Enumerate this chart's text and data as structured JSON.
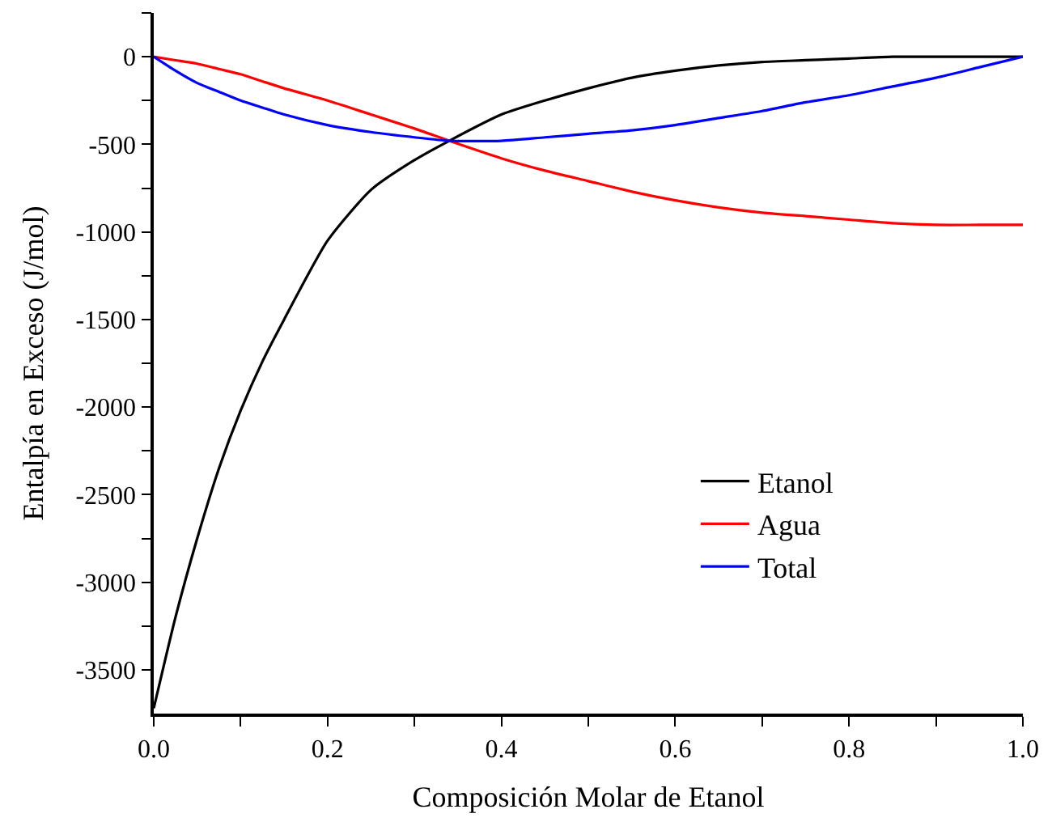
{
  "chart_data": {
    "type": "line",
    "xlabel": "Composición Molar de Etanol",
    "ylabel": "Entalpía en Exceso (J/mol)",
    "x": [
      0,
      0.025,
      0.05,
      0.075,
      0.1,
      0.125,
      0.15,
      0.2,
      0.25,
      0.3,
      0.34,
      0.4,
      0.45,
      0.5,
      0.55,
      0.6,
      0.65,
      0.7,
      0.75,
      0.8,
      0.85,
      0.9,
      0.95,
      1.0
    ],
    "series": [
      {
        "name": "Etanol",
        "color": "#000000",
        "values": [
          -3720,
          -3200,
          -2750,
          -2350,
          -2020,
          -1740,
          -1500,
          -1050,
          -760,
          -590,
          -480,
          -330,
          -250,
          -180,
          -120,
          -80,
          -50,
          -30,
          -20,
          -10,
          0,
          0,
          0,
          0
        ]
      },
      {
        "name": "Agua",
        "color": "#ff0000",
        "values": [
          0,
          -20,
          -40,
          -70,
          -100,
          -140,
          -180,
          -250,
          -330,
          -410,
          -480,
          -580,
          -650,
          -710,
          -770,
          -820,
          -860,
          -890,
          -910,
          -930,
          -950,
          -960,
          -960,
          -960
        ]
      },
      {
        "name": "Total",
        "color": "#0000ff",
        "values": [
          0,
          -80,
          -150,
          -200,
          -250,
          -290,
          -330,
          -390,
          -430,
          -460,
          -480,
          -480,
          -460,
          -440,
          -420,
          -390,
          -350,
          -310,
          -260,
          -220,
          -170,
          -120,
          -60,
          0
        ]
      }
    ],
    "xlim": [
      0,
      1.0
    ],
    "ylim": [
      -3750,
      250
    ],
    "xticks": [
      {
        "value": 0,
        "label": "0.0"
      },
      {
        "value": 0.1,
        "label": null
      },
      {
        "value": 0.2,
        "label": "0.2"
      },
      {
        "value": 0.3,
        "label": null
      },
      {
        "value": 0.4,
        "label": "0.4"
      },
      {
        "value": 0.5,
        "label": null
      },
      {
        "value": 0.6,
        "label": "0.6"
      },
      {
        "value": 0.7,
        "label": null
      },
      {
        "value": 0.8,
        "label": "0.8"
      },
      {
        "value": 0.9,
        "label": null
      },
      {
        "value": 1.0,
        "label": "1.0"
      }
    ],
    "yticks": [
      -3500,
      {
        "value": -3250,
        "label": null
      },
      -3000,
      {
        "value": -2750,
        "label": null
      },
      -2500,
      {
        "value": -2250,
        "label": null
      },
      -2000,
      {
        "value": -1750,
        "label": null
      },
      -1500,
      {
        "value": -1250,
        "label": null
      },
      -1000,
      {
        "value": -750,
        "label": null
      },
      -500,
      {
        "value": -250,
        "label": null
      },
      0,
      {
        "value": 250,
        "label": null
      }
    ],
    "legend": "bottom right",
    "marker": "none",
    "line_style": "solid"
  }
}
